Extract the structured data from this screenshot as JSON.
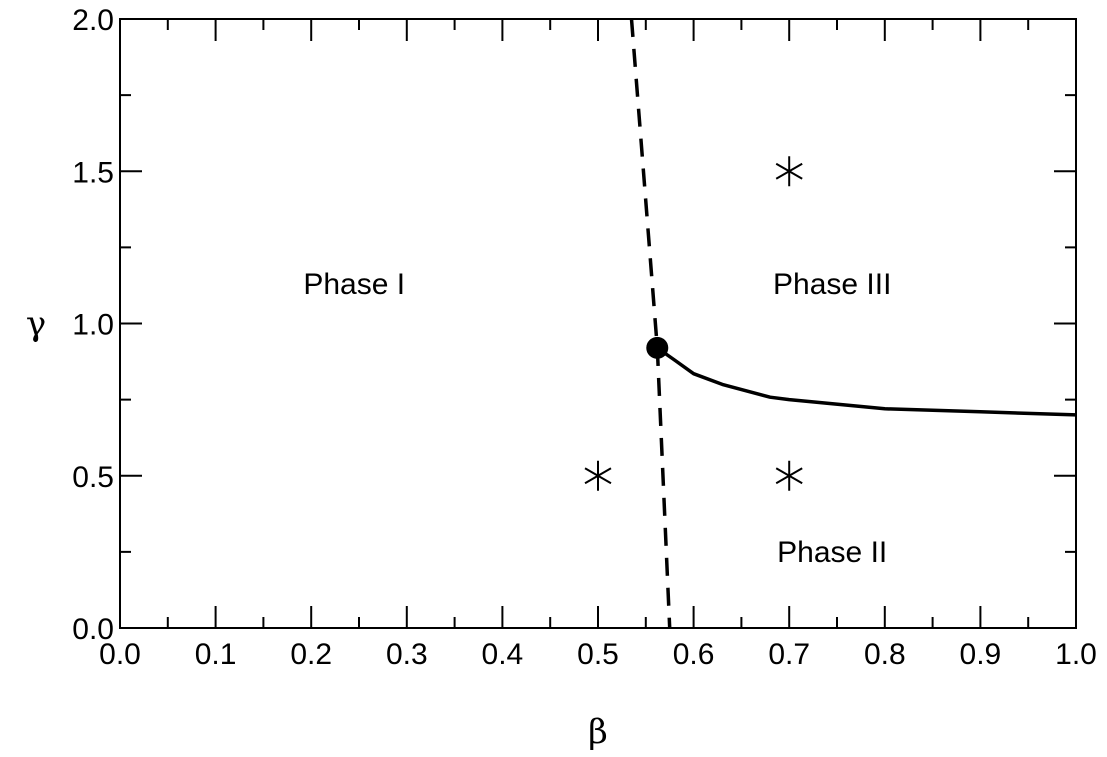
{
  "chart_data": {
    "type": "line",
    "title": "",
    "xlabel": "β",
    "ylabel": "γ",
    "xlim": [
      0.0,
      1.0
    ],
    "ylim": [
      0.0,
      2.0
    ],
    "grid": false,
    "x_ticks": [
      0.0,
      0.1,
      0.2,
      0.3,
      0.4,
      0.5,
      0.6,
      0.7,
      0.8,
      0.9,
      1.0
    ],
    "x_tick_labels": [
      "0.0",
      "0.1",
      "0.2",
      "0.3",
      "0.4",
      "0.5",
      "0.6",
      "0.7",
      "0.8",
      "0.9",
      "1.0"
    ],
    "y_ticks": [
      0.0,
      0.5,
      1.0,
      1.5,
      2.0
    ],
    "y_tick_labels": [
      "0.0",
      "0.5",
      "1.0",
      "1.5",
      "2.0"
    ],
    "series": [
      {
        "style": "dashed",
        "points": [
          [
            0.535,
            2.0
          ],
          [
            0.562,
            0.92
          ],
          [
            0.575,
            0.0
          ]
        ]
      },
      {
        "style": "solid",
        "points": [
          [
            0.562,
            0.92
          ],
          [
            0.58,
            0.88
          ],
          [
            0.6,
            0.835
          ],
          [
            0.63,
            0.8
          ],
          [
            0.68,
            0.758
          ],
          [
            0.7,
            0.75
          ],
          [
            0.8,
            0.72
          ],
          [
            0.9,
            0.71
          ],
          [
            1.0,
            0.7
          ]
        ]
      }
    ],
    "markers": {
      "critical_point": [
        0.562,
        0.92
      ],
      "asterisks": [
        [
          0.5,
          0.5
        ],
        [
          0.7,
          0.5
        ],
        [
          0.7,
          1.5
        ]
      ]
    },
    "annotations": [
      {
        "text": "Phase I",
        "x": 0.245,
        "y": 1.13
      },
      {
        "text": "Phase III",
        "x": 0.745,
        "y": 1.13
      },
      {
        "text": "Phase II",
        "x": 0.745,
        "y": 0.25
      }
    ]
  }
}
